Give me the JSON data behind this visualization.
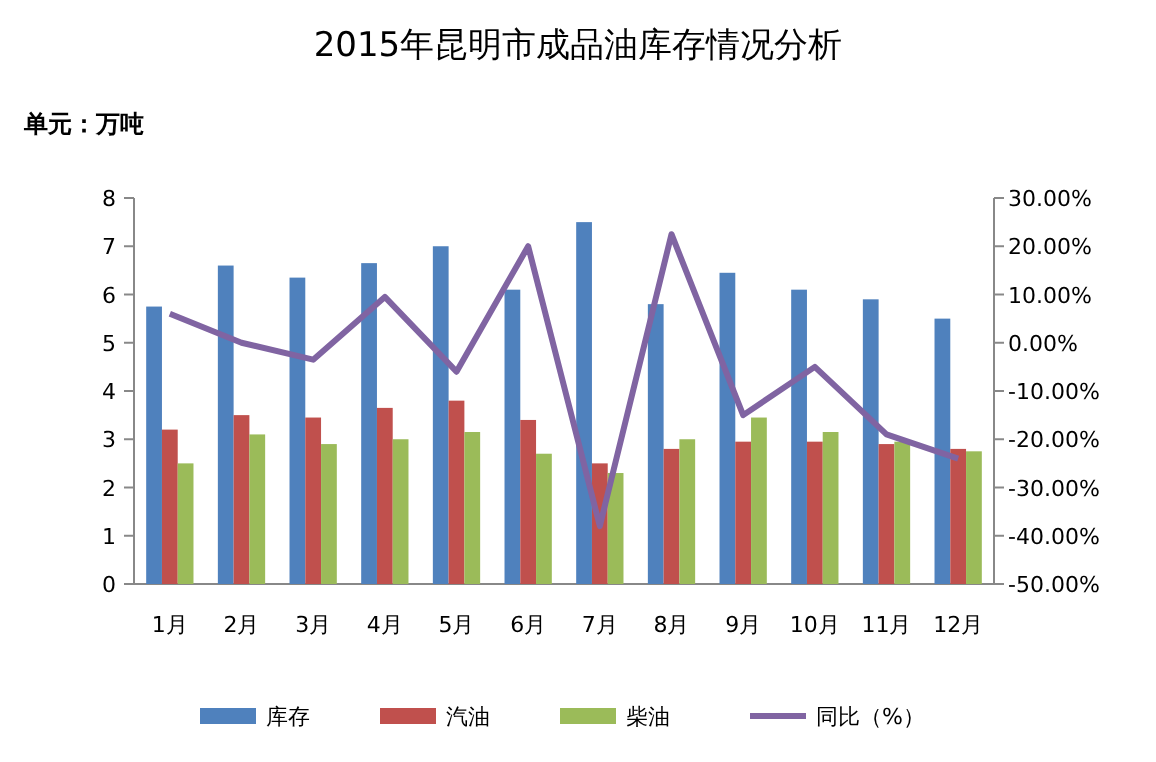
{
  "chart_data": {
    "type": "bar",
    "title": "2015年昆明市成品油库存情况分析",
    "annotations": [
      "单元：万吨"
    ],
    "categories": [
      "1月",
      "2月",
      "3月",
      "4月",
      "5月",
      "6月",
      "7月",
      "8月",
      "9月",
      "10月",
      "11月",
      "12月"
    ],
    "series": [
      {
        "name": "库存",
        "color": "#4f81bd",
        "values": [
          5.75,
          6.6,
          6.35,
          6.65,
          7.0,
          6.1,
          7.5,
          5.8,
          6.45,
          6.1,
          5.9,
          5.5
        ]
      },
      {
        "name": "汽油",
        "color": "#c0504d",
        "values": [
          3.2,
          3.5,
          3.45,
          3.65,
          3.8,
          3.4,
          2.5,
          2.8,
          2.95,
          2.95,
          2.9,
          2.8
        ]
      },
      {
        "name": "柴油",
        "color": "#9bbb59",
        "values": [
          2.5,
          3.1,
          2.9,
          3.0,
          3.15,
          2.7,
          2.3,
          3.0,
          3.45,
          3.15,
          2.95,
          2.75
        ]
      },
      {
        "name": "同比（%）",
        "color": "#8064a2",
        "type": "line",
        "axis": "y2",
        "values": [
          6,
          0,
          -3.5,
          9.5,
          -6,
          20,
          -38,
          22.5,
          -15,
          -5,
          -19,
          -24
        ]
      }
    ],
    "ylim": [
      0,
      8
    ],
    "yticks": [
      0,
      1,
      2,
      3,
      4,
      5,
      6,
      7,
      8
    ],
    "y2lim": [
      -50,
      30
    ],
    "y2ticks": [
      {
        "value": -50,
        "label": "-50.00%"
      },
      {
        "value": -40,
        "label": "-40.00%"
      },
      {
        "value": -30,
        "label": "-30.00%"
      },
      {
        "value": -20,
        "label": "-20.00%"
      },
      {
        "value": -10,
        "label": "-10.00%"
      },
      {
        "value": 0,
        "label": "0.00%"
      },
      {
        "value": 10,
        "label": "10.00%"
      },
      {
        "value": 20,
        "label": "20.00%"
      },
      {
        "value": 30,
        "label": "30.00%"
      }
    ],
    "legend": "bottom",
    "marker": "none"
  }
}
